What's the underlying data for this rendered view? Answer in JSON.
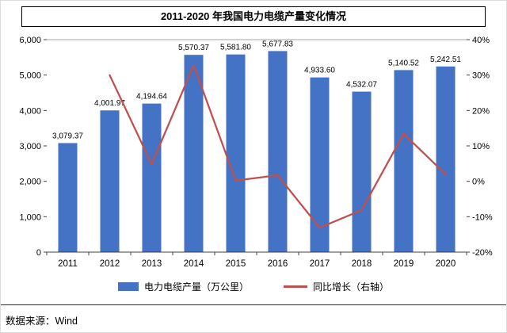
{
  "page": {
    "title": "2011-2020 年我国电力电缆产量变化情况",
    "footer": "数据来源：Wind"
  },
  "chart_data": {
    "type": "bar+line",
    "title": "2011-2020 年我国电力电缆产量变化情况",
    "categories": [
      "2011",
      "2012",
      "2013",
      "2014",
      "2015",
      "2016",
      "2017",
      "2018",
      "2019",
      "2020"
    ],
    "series": [
      {
        "name": "电力电缆产量（万公里）",
        "type": "bar",
        "axis": "left",
        "color": "#4472C4",
        "values": [
          3079.37,
          4001.97,
          4194.64,
          5570.37,
          5581.8,
          5677.83,
          4933.6,
          4532.07,
          5140.52,
          5242.51
        ],
        "labels": [
          "3,079.37",
          "4,001.97",
          "4,194.64",
          "5,570.37",
          "5,581.80",
          "5,677.83",
          "4,933.60",
          "4,532.07",
          "5,140.52",
          "5,242.51"
        ]
      },
      {
        "name": "同比增长（右轴）",
        "type": "line",
        "axis": "right",
        "color": "#C0504D",
        "start_index": 1,
        "values": [
          29.96,
          4.81,
          32.8,
          0.21,
          1.72,
          -13.11,
          -8.14,
          13.43,
          1.98
        ]
      }
    ],
    "left_axis": {
      "min": 0,
      "max": 6000,
      "ticks": [
        "0",
        "1,000",
        "2,000",
        "3,000",
        "4,000",
        "5,000",
        "6,000"
      ]
    },
    "right_axis": {
      "min": -20,
      "max": 40,
      "ticks": [
        "-20%",
        "-10%",
        "0%",
        "10%",
        "20%",
        "30%",
        "40%"
      ]
    },
    "legend_position": "bottom",
    "grid": false
  }
}
